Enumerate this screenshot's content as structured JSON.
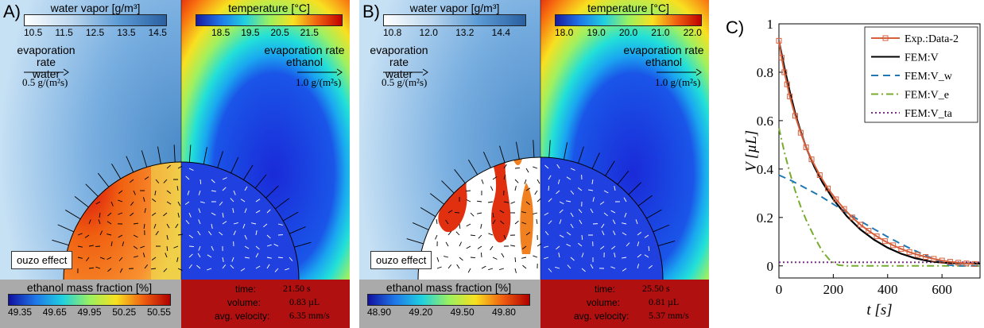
{
  "panel_a": {
    "label": "A)",
    "water_vapor": {
      "title": "water vapor [g/m³]",
      "ticks": [
        "10.5",
        "11.5",
        "12.5",
        "13.5",
        "14.5"
      ]
    },
    "temperature": {
      "title": "temperature [°C]",
      "ticks": [
        "18.5",
        "19.5",
        "20.5",
        "21.5"
      ]
    },
    "evap_water": {
      "line1": "evaporation rate",
      "line2": "water",
      "rate": "0.5 g/(m²s)"
    },
    "evap_ethanol": {
      "line1": "evaporation rate",
      "line2": "ethanol",
      "rate": "1.0 g/(m²s)"
    },
    "ouzo": "ouzo effect",
    "ethanol": {
      "title": "ethanol mass fraction [%]",
      "ticks": [
        "49.35",
        "49.65",
        "49.95",
        "50.25",
        "50.55"
      ]
    },
    "stats": {
      "time_label": "time:",
      "time_value": "21.50 s",
      "volume_label": "volume:",
      "volume_value": "0.83 µL",
      "velocity_label": "avg. velocity:",
      "velocity_value": "6.35 mm/s"
    }
  },
  "panel_b": {
    "label": "B)",
    "water_vapor": {
      "title": "water vapor [g/m³]",
      "ticks": [
        "10.8",
        "12.0",
        "13.2",
        "14.4"
      ]
    },
    "temperature": {
      "title": "temperature [°C]",
      "ticks": [
        "18.0",
        "19.0",
        "20.0",
        "21.0",
        "22.0"
      ]
    },
    "evap_water": {
      "line1": "evaporation rate",
      "line2": "water",
      "rate": "0.5 g/(m²s)"
    },
    "evap_ethanol": {
      "line1": "evaporation rate",
      "line2": "ethanol",
      "rate": "1.0 g/(m²s)"
    },
    "ouzo": "ouzo effect",
    "ethanol": {
      "title": "ethanol mass fraction [%]",
      "ticks": [
        "48.90",
        "49.20",
        "49.50",
        "49.80"
      ]
    },
    "stats": {
      "time_label": "time:",
      "time_value": "25.50 s",
      "volume_label": "volume:",
      "volume_value": "0.81 µL",
      "velocity_label": "avg. velocity:",
      "velocity_value": "5.37 mm/s"
    }
  },
  "chart_data": {
    "label": "C)",
    "type": "line",
    "xlabel": "t [s]",
    "ylabel": "V [µL]",
    "xlim": [
      0,
      740
    ],
    "ylim": [
      -0.05,
      1.0
    ],
    "xticks": [
      0,
      200,
      400,
      600
    ],
    "yticks": [
      0,
      0.2,
      0.4,
      0.6,
      0.8,
      1
    ],
    "ytick_labels": [
      "0",
      "0.2",
      "0.4",
      "0.6",
      "0.8",
      "1"
    ],
    "legend_position": "top-right",
    "series": [
      {
        "name": "Exp.:Data-2",
        "style": "markers-line",
        "color": "#d65f3c",
        "x": [
          0,
          10,
          20,
          30,
          40,
          60,
          80,
          100,
          120,
          150,
          180,
          210,
          240,
          270,
          300,
          330,
          360,
          390,
          420,
          450,
          480,
          510,
          540,
          570,
          600,
          630,
          660,
          690,
          720
        ],
        "y": [
          0.93,
          0.86,
          0.8,
          0.75,
          0.7,
          0.62,
          0.55,
          0.49,
          0.44,
          0.375,
          0.32,
          0.275,
          0.235,
          0.2,
          0.17,
          0.145,
          0.122,
          0.102,
          0.085,
          0.07,
          0.057,
          0.046,
          0.037,
          0.029,
          0.022,
          0.017,
          0.013,
          0.01,
          0.008
        ]
      },
      {
        "name": "FEM:V",
        "style": "solid",
        "color": "#000000",
        "x": [
          0,
          20,
          40,
          60,
          80,
          100,
          130,
          160,
          200,
          250,
          300,
          350,
          400,
          450,
          500,
          550,
          600,
          650,
          700,
          740
        ],
        "y": [
          0.93,
          0.82,
          0.72,
          0.63,
          0.555,
          0.49,
          0.41,
          0.345,
          0.275,
          0.205,
          0.15,
          0.108,
          0.075,
          0.05,
          0.032,
          0.02,
          0.013,
          0.011,
          0.01,
          0.01
        ]
      },
      {
        "name": "FEM:V_w",
        "style": "dashed",
        "color": "#1f77b4",
        "x": [
          0,
          50,
          100,
          150,
          200,
          250,
          300,
          350,
          400,
          450,
          500,
          550,
          600,
          620,
          650,
          700,
          740
        ],
        "y": [
          0.375,
          0.35,
          0.32,
          0.29,
          0.255,
          0.22,
          0.185,
          0.152,
          0.12,
          0.09,
          0.063,
          0.038,
          0.015,
          0.005,
          0,
          0,
          0
        ]
      },
      {
        "name": "FEM:V_e",
        "style": "dashdot",
        "color": "#77ac30",
        "x": [
          0,
          20,
          40,
          60,
          80,
          100,
          130,
          160,
          190,
          220,
          250,
          300,
          400,
          500,
          600,
          740
        ],
        "y": [
          0.57,
          0.47,
          0.385,
          0.31,
          0.245,
          0.19,
          0.12,
          0.06,
          0.02,
          0.003,
          0,
          0,
          0,
          0,
          0,
          0
        ]
      },
      {
        "name": "FEM:V_ta",
        "style": "dotted",
        "color": "#7e2f8e",
        "x": [
          0,
          740
        ],
        "y": [
          0.015,
          0.015
        ]
      }
    ]
  }
}
